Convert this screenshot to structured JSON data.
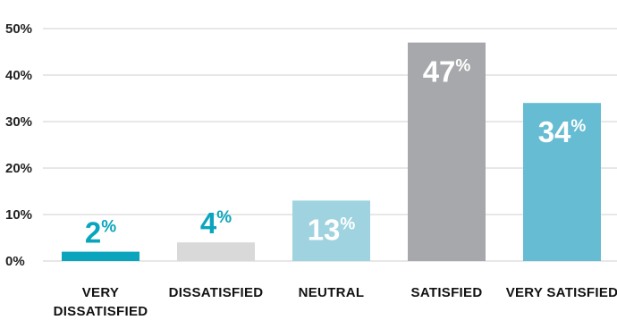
{
  "chart_data": {
    "type": "bar",
    "title": "",
    "xlabel": "",
    "ylabel": "",
    "ylim": [
      0,
      50
    ],
    "yticks": [
      0,
      10,
      20,
      30,
      40,
      50
    ],
    "ytick_suffix": "%",
    "grid": true,
    "categories": [
      [
        "VERY",
        "DISSATISFIED"
      ],
      [
        "DISSATISFIED"
      ],
      [
        "NEUTRAL"
      ],
      [
        "SATISFIED"
      ],
      [
        "VERY SATISFIED"
      ]
    ],
    "values": [
      2,
      4,
      13,
      47,
      34
    ],
    "value_suffix": "%",
    "bar_colors": [
      "#0aa5bd",
      "#d9d9d9",
      "#9fd3e0",
      "#a7a8ab",
      "#66bcd2"
    ],
    "label_colors": [
      "#0aa5bd",
      "#0aa5bd",
      "#ffffff",
      "#ffffff",
      "#ffffff"
    ],
    "label_position": [
      "above",
      "above",
      "inside",
      "inside",
      "inside"
    ]
  }
}
